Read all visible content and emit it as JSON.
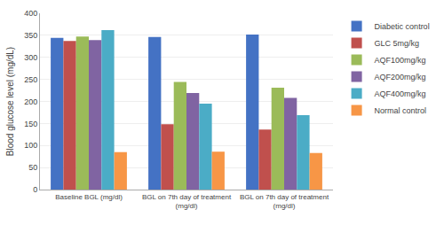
{
  "chart_data": {
    "type": "bar",
    "categories": [
      "Baseline BGL (mg/dl)",
      "BGL on 7th day of treatment\n(mg/dl)",
      "BGL on 7th day of treatment\n(mg/dl)"
    ],
    "series": [
      {
        "name": "Diabetic control",
        "color": "#4472C4",
        "values": [
          344,
          346,
          352
        ]
      },
      {
        "name": "GLC 5mg/kg",
        "color": "#C0504D",
        "values": [
          337,
          148,
          136
        ]
      },
      {
        "name": "AQF100mg/kg",
        "color": "#9BBB59",
        "values": [
          347,
          244,
          231
        ]
      },
      {
        "name": "AQF200mg/kg",
        "color": "#8064A2",
        "values": [
          339,
          219,
          208
        ]
      },
      {
        "name": "AQF400mg/kg",
        "color": "#4BACC6",
        "values": [
          362,
          195,
          169
        ]
      },
      {
        "name": "Normal control",
        "color": "#F79646",
        "values": [
          85,
          86,
          83
        ]
      }
    ],
    "ylabel": "Blood glucose level (mg/dL)",
    "ylim": [
      0,
      400
    ],
    "yticks": [
      0,
      50,
      100,
      150,
      200,
      250,
      300,
      350,
      400
    ],
    "grid": true,
    "legend": "right"
  }
}
